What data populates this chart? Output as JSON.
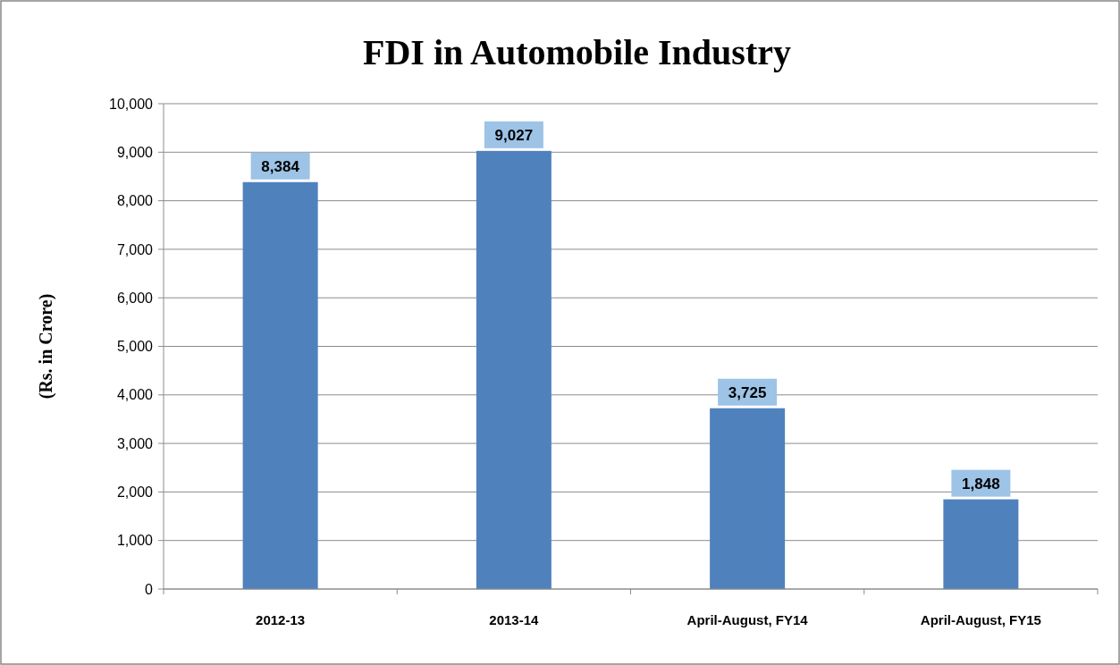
{
  "chart_data": {
    "type": "bar",
    "title": "FDI in Automobile Industry",
    "ylabel": "(Rs. in Crore)",
    "categories": [
      "2012-13",
      "2013-14",
      "April-August, FY14",
      "April-August, FY15"
    ],
    "values": [
      8384,
      9027,
      3725,
      1848
    ],
    "color": "#4f81bd",
    "value_labels": [
      "8,384",
      "9,027",
      "3,725",
      "1,848"
    ],
    "ylim": [
      0,
      10000
    ],
    "yticks": [
      {
        "value": 0,
        "label": "0"
      },
      {
        "value": 1000,
        "label": "1,000"
      },
      {
        "value": 2000,
        "label": "2,000"
      },
      {
        "value": 3000,
        "label": "3,000"
      },
      {
        "value": 4000,
        "label": "4,000"
      },
      {
        "value": 5000,
        "label": "5,000"
      },
      {
        "value": 6000,
        "label": "6,000"
      },
      {
        "value": 7000,
        "label": "7,000"
      },
      {
        "value": 8000,
        "label": "8,000"
      },
      {
        "value": 9000,
        "label": "9,000"
      },
      {
        "value": 10000,
        "label": "10,000"
      }
    ],
    "grid": "y"
  }
}
